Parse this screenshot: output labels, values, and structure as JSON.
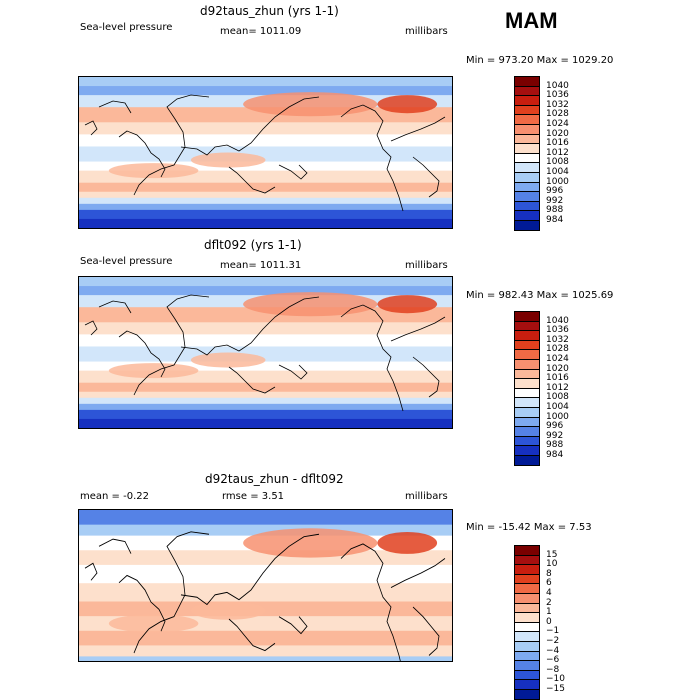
{
  "season": "MAM",
  "panels": [
    {
      "title": "d92taus_zhun (yrs 1-1)",
      "left_text": "Sea-level pressure",
      "center_text": "mean= 1011.09",
      "right_text": "millibars",
      "range_text": "Min = 973.20 Max = 1029.20",
      "kind": "field"
    },
    {
      "title": "dflt092 (yrs 1-1)",
      "left_text": "Sea-level pressure",
      "center_text": "mean= 1011.31",
      "right_text": "millibars",
      "range_text": "Min = 982.43 Max = 1025.69",
      "kind": "field"
    },
    {
      "title": "d92taus_zhun - dflt092",
      "left_text": "mean =  -0.22",
      "center_text": "rmse =   3.51",
      "right_text": "millibars",
      "range_text": "Min = -15.42 Max =   7.53",
      "kind": "diff"
    }
  ],
  "colorbar_field": {
    "labels": [
      "1040",
      "1036",
      "1032",
      "1028",
      "1024",
      "1020",
      "1016",
      "1012",
      "1008",
      "1004",
      "1000",
      "996",
      "992",
      "988",
      "984"
    ],
    "colors": [
      "#7a0000",
      "#a50f0f",
      "#c81e0f",
      "#e0401e",
      "#f06a45",
      "#f79070",
      "#fbb89a",
      "#fde0cc",
      "#ffffff",
      "#d2e6fa",
      "#a8cdf5",
      "#7eaaf0",
      "#5582e6",
      "#2d55d7",
      "#1630c0",
      "#001a96"
    ]
  },
  "colorbar_diff": {
    "labels": [
      "15",
      "10",
      "8",
      "6",
      "4",
      "2",
      "1",
      "0",
      "−1",
      "−2",
      "−4",
      "−6",
      "−8",
      "−10",
      "−15"
    ],
    "colors": [
      "#7a0000",
      "#a50f0f",
      "#c81e0f",
      "#e0401e",
      "#f06a45",
      "#f79070",
      "#fbb89a",
      "#fde0cc",
      "#ffffff",
      "#d2e6fa",
      "#a8cdf5",
      "#7eaaf0",
      "#5582e6",
      "#2d55d7",
      "#1630c0",
      "#001a96"
    ]
  }
}
